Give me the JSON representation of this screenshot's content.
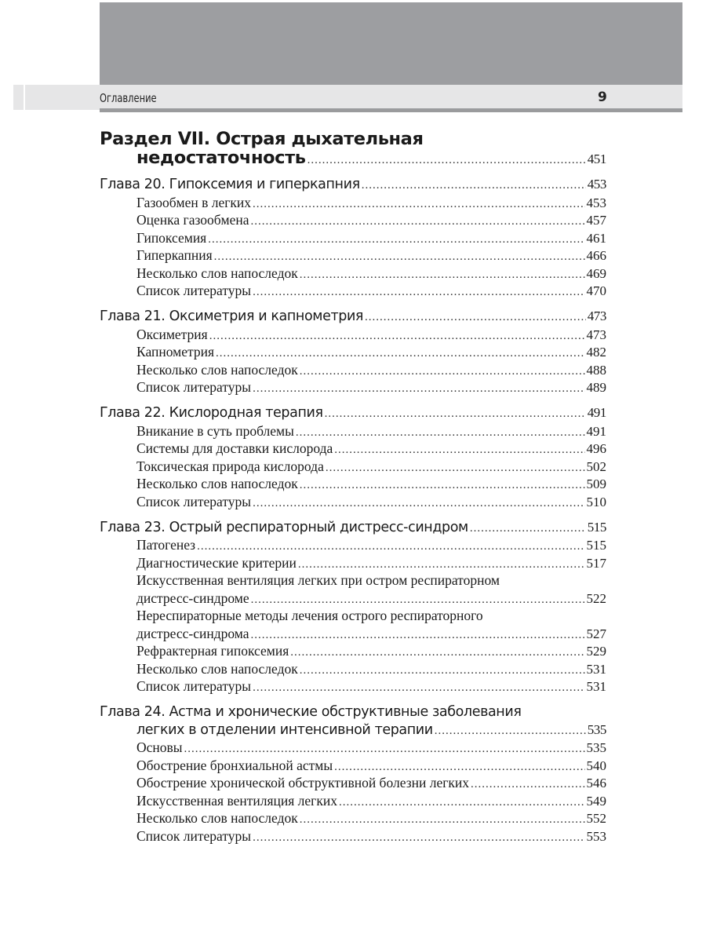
{
  "header": {
    "title": "Оглавление",
    "page": "9"
  },
  "section": {
    "lines": [
      "Раздел VII. Острая дыхательная",
      "недостаточность"
    ],
    "page": "451"
  },
  "chapters": [
    {
      "lines": [
        "Глава 20. Гипоксемия и гиперкапния"
      ],
      "page": "453",
      "items": [
        {
          "lines": [
            "Газообмен в легких"
          ],
          "page": "453"
        },
        {
          "lines": [
            "Оценка газообмена"
          ],
          "page": "457"
        },
        {
          "lines": [
            "Гипоксемия"
          ],
          "page": "461"
        },
        {
          "lines": [
            "Гиперкапния"
          ],
          "page": "466"
        },
        {
          "lines": [
            "Несколько слов напоследок"
          ],
          "page": "469"
        },
        {
          "lines": [
            "Список литературы"
          ],
          "page": "470"
        }
      ]
    },
    {
      "lines": [
        "Глава 21. Оксиметрия и капнометрия"
      ],
      "page": "473",
      "items": [
        {
          "lines": [
            "Оксиметрия"
          ],
          "page": "473"
        },
        {
          "lines": [
            "Капнометрия"
          ],
          "page": "482"
        },
        {
          "lines": [
            "Несколько слов напоследок"
          ],
          "page": "488"
        },
        {
          "lines": [
            "Список литературы"
          ],
          "page": "489"
        }
      ]
    },
    {
      "lines": [
        "Глава 22. Кислородная терапия"
      ],
      "page": "491",
      "items": [
        {
          "lines": [
            "Вникание в суть проблемы"
          ],
          "page": "491"
        },
        {
          "lines": [
            "Системы для доставки кислорода"
          ],
          "page": "496"
        },
        {
          "lines": [
            "Токсическая природа кислорода"
          ],
          "page": "502"
        },
        {
          "lines": [
            "Несколько слов напоследок"
          ],
          "page": "509"
        },
        {
          "lines": [
            "Список литературы"
          ],
          "page": "510"
        }
      ]
    },
    {
      "lines": [
        "Глава 23. Острый респираторный дистресс-синдром"
      ],
      "page": "515",
      "items": [
        {
          "lines": [
            "Патогенез"
          ],
          "page": "515"
        },
        {
          "lines": [
            "Диагностические критерии"
          ],
          "page": "517"
        },
        {
          "lines": [
            "Искусственная вентиляция легких при остром респираторном",
            "дистресс-синдроме"
          ],
          "page": "522"
        },
        {
          "lines": [
            "Нереспираторные методы лечения острого респираторного",
            "дистресс-синдрома"
          ],
          "page": "527"
        },
        {
          "lines": [
            "Рефрактерная гипоксемия"
          ],
          "page": "529"
        },
        {
          "lines": [
            "Несколько слов напоследок"
          ],
          "page": "531"
        },
        {
          "lines": [
            "Список литературы"
          ],
          "page": "531"
        }
      ]
    },
    {
      "lines": [
        "Глава 24. Астма и хронические обструктивные заболевания",
        "легких в отделении интенсивной терапии"
      ],
      "page": "535",
      "items": [
        {
          "lines": [
            "Основы"
          ],
          "page": "535"
        },
        {
          "lines": [
            "Обострение бронхиальной астмы"
          ],
          "page": "540"
        },
        {
          "lines": [
            "Обострение хронической обструктивной болезни легких"
          ],
          "page": "546"
        },
        {
          "lines": [
            "Искусственная вентиляция легких"
          ],
          "page": "549"
        },
        {
          "lines": [
            "Несколько слов напоследок"
          ],
          "page": "552"
        },
        {
          "lines": [
            "Список литературы"
          ],
          "page": "553"
        }
      ]
    }
  ]
}
